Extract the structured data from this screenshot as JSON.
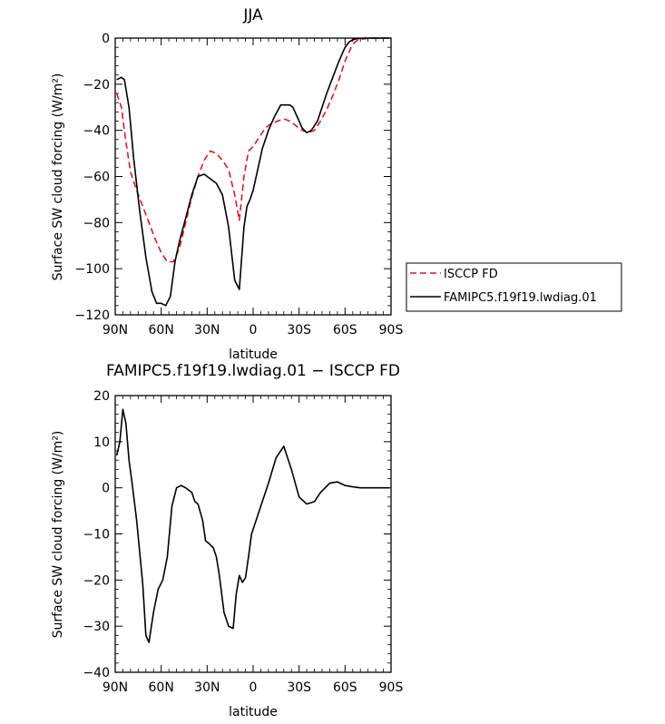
{
  "chart_data": [
    {
      "type": "line",
      "title": "JJA",
      "xlabel": "latitude",
      "ylabel": "Surface SW cloud forcing (W/m²)",
      "xlim": [
        90,
        -90
      ],
      "ylim": [
        -120,
        0
      ],
      "xticks": [
        90,
        60,
        30,
        0,
        -30,
        -60,
        -90
      ],
      "xtick_labels": [
        "90N",
        "60N",
        "30N",
        "0",
        "30S",
        "60S",
        "90S"
      ],
      "yticks": [
        0,
        -20,
        -40,
        -60,
        -80,
        -100,
        -120
      ],
      "ytick_labels": [
        "0",
        "−20",
        "−40",
        "−60",
        "−80",
        "−100",
        "−120"
      ],
      "legend_position": "right",
      "series": [
        {
          "name": "ISCCP FD",
          "color": "#e8141e",
          "dash": "dashed",
          "x": [
            89,
            86,
            83,
            80,
            76,
            72,
            68,
            64,
            60,
            56,
            52,
            48,
            44,
            40,
            36,
            32,
            28,
            24,
            20,
            16,
            12,
            9,
            6,
            3,
            0,
            -4,
            -8,
            -12,
            -16,
            -20,
            -24,
            -28,
            -32,
            -36,
            -40,
            -44,
            -48,
            -52,
            -56,
            -60,
            -64,
            -66,
            -68,
            -72,
            -76,
            -80,
            -84,
            -89
          ],
          "y": [
            -24,
            -30,
            -45,
            -58,
            -66,
            -73,
            -80,
            -87,
            -93,
            -97,
            -97,
            -91,
            -80,
            -69,
            -60,
            -53,
            -49,
            -50,
            -53,
            -57,
            -68,
            -79,
            -60,
            -49,
            -47,
            -43,
            -39,
            -37,
            -36,
            -35,
            -36,
            -38,
            -40,
            -41,
            -40,
            -36,
            -31,
            -25,
            -18,
            -10,
            -4,
            -2,
            -1,
            -0.3,
            -0.1,
            0,
            0,
            0
          ]
        },
        {
          "name": "FAMIPC5.f19f19.lwdiag.01",
          "color": "#000000",
          "dash": "solid",
          "x": [
            89,
            86,
            84,
            81,
            78,
            74,
            70,
            66,
            63,
            60,
            57,
            54,
            51,
            48,
            44,
            40,
            36,
            32,
            28,
            24,
            20,
            16,
            12,
            9,
            6,
            4,
            2,
            0,
            -3,
            -6,
            -10,
            -14,
            -18,
            -22,
            -24,
            -26,
            -28,
            -30,
            -32,
            -35,
            -38,
            -42,
            -45,
            -48,
            -52,
            -56,
            -60,
            -63,
            -65,
            -67,
            -70,
            -74,
            -78,
            -84,
            -89
          ],
          "y": [
            -18,
            -17,
            -18,
            -30,
            -52,
            -75,
            -95,
            -110,
            -115,
            -115,
            -116,
            -112,
            -97,
            -88,
            -78,
            -68,
            -60,
            -59,
            -61,
            -63,
            -68,
            -82,
            -105,
            -109,
            -82,
            -73,
            -70,
            -66,
            -57,
            -48,
            -40,
            -34,
            -29,
            -29,
            -29,
            -30,
            -33,
            -36,
            -39,
            -41,
            -40,
            -36,
            -30,
            -24,
            -17,
            -10,
            -4,
            -1.5,
            -0.7,
            -0.3,
            -0.1,
            0,
            0,
            0,
            0
          ]
        }
      ]
    },
    {
      "type": "line",
      "title": "FAMIPC5.f19f19.lwdiag.01 − ISCCP FD",
      "xlabel": "latitude",
      "ylabel": "Surface SW cloud forcing (W/m²)",
      "xlim": [
        90,
        -90
      ],
      "ylim": [
        -40,
        20
      ],
      "xticks": [
        90,
        60,
        30,
        0,
        -30,
        -60,
        -90
      ],
      "xtick_labels": [
        "90N",
        "60N",
        "30N",
        "0",
        "30S",
        "60S",
        "90S"
      ],
      "yticks": [
        20,
        10,
        0,
        -10,
        -20,
        -30,
        -40
      ],
      "ytick_labels": [
        "20",
        "10",
        "0",
        "−10",
        "−20",
        "−30",
        "−40"
      ],
      "series": [
        {
          "name": "FAMIPC5.f19f19.lwdiag.01 − ISCCP FD",
          "color": "#000000",
          "dash": "solid",
          "x": [
            89,
            87,
            85,
            83,
            81,
            79,
            76,
            72,
            70,
            68,
            65,
            62,
            59,
            56,
            53,
            50,
            47,
            44,
            40,
            38,
            36,
            33,
            31,
            29,
            26,
            24,
            22,
            19,
            16,
            13,
            11,
            9,
            7,
            5,
            3,
            1,
            -2,
            -5,
            -10,
            -15,
            -20,
            -25,
            -30,
            -35,
            -40,
            -42,
            -44,
            -47,
            -50,
            -55,
            -60,
            -65,
            -70,
            -75,
            -80,
            -85,
            -89
          ],
          "y": [
            7,
            10,
            17,
            14,
            6,
            1,
            -7,
            -21,
            -32,
            -33.5,
            -27,
            -22,
            -20,
            -15,
            -4,
            0,
            0.5,
            0,
            -1,
            -3,
            -3.5,
            -7,
            -11.5,
            -12,
            -13,
            -15,
            -19,
            -27,
            -30,
            -30.5,
            -23,
            -19,
            -20.5,
            -19.5,
            -15,
            -10,
            -7,
            -4,
            1,
            6.5,
            9,
            4,
            -2,
            -3.5,
            -3,
            -2,
            -1,
            0,
            1,
            1.3,
            0.5,
            0.2,
            0,
            0,
            0,
            0,
            0
          ]
        }
      ]
    }
  ]
}
